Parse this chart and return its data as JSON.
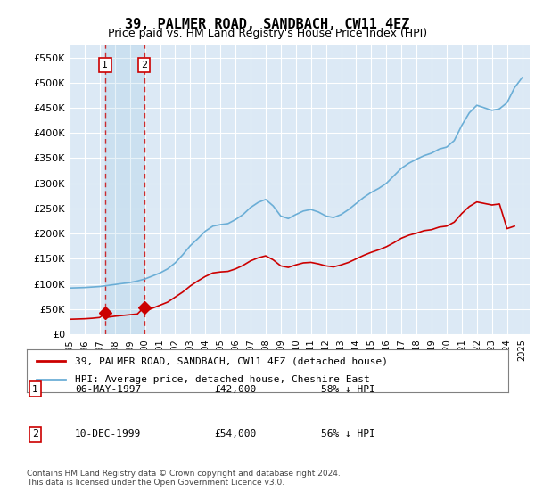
{
  "title": "39, PALMER ROAD, SANDBACH, CW11 4EZ",
  "subtitle": "Price paid vs. HM Land Registry's House Price Index (HPI)",
  "ylabel_ticks": [
    "£0",
    "£50K",
    "£100K",
    "£150K",
    "£200K",
    "£250K",
    "£300K",
    "£350K",
    "£400K",
    "£450K",
    "£500K",
    "£550K"
  ],
  "ylabel_values": [
    0,
    50000,
    100000,
    150000,
    200000,
    250000,
    300000,
    350000,
    400000,
    450000,
    500000,
    550000
  ],
  "ylim": [
    0,
    575000
  ],
  "xlim_start": 1995.0,
  "xlim_end": 2025.5,
  "transaction1": {
    "date_num": 1997.35,
    "price": 42000,
    "label": "1",
    "date_str": "06-MAY-1997",
    "pct": "58% ↓ HPI"
  },
  "transaction2": {
    "date_num": 1999.94,
    "price": 54000,
    "label": "2",
    "date_str": "10-DEC-1999",
    "pct": "56% ↓ HPI"
  },
  "legend_line1": "39, PALMER ROAD, SANDBACH, CW11 4EZ (detached house)",
  "legend_line2": "HPI: Average price, detached house, Cheshire East",
  "footer": "Contains HM Land Registry data © Crown copyright and database right 2024.\nThis data is licensed under the Open Government Licence v3.0.",
  "table_row1": [
    "1",
    "06-MAY-1997",
    "£42,000",
    "58% ↓ HPI"
  ],
  "table_row2": [
    "2",
    "10-DEC-1999",
    "£54,000",
    "56% ↓ HPI"
  ],
  "hpi_color": "#6baed6",
  "price_color": "#cc0000",
  "vline_color": "#cc0000",
  "background_color": "#dce9f5",
  "plot_bg": "#ffffff"
}
